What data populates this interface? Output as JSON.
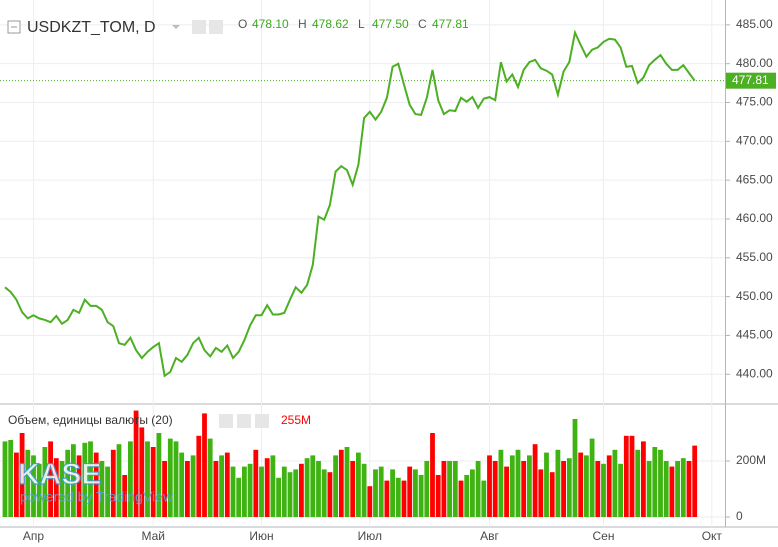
{
  "chart_data": [
    {
      "type": "line",
      "title": "USDKZT_TOM, D",
      "ohlc": [
        {
          "label": "O",
          "value": "478.10"
        },
        {
          "label": "H",
          "value": "478.62"
        },
        {
          "label": "L",
          "value": "477.50"
        },
        {
          "label": "C",
          "value": "477.81"
        }
      ],
      "color": "#4caf24",
      "last_price": 477.81,
      "values": [
        451.2,
        450.6,
        449.6,
        448.0,
        447.2,
        447.6,
        447.2,
        447.0,
        446.7,
        447.5,
        446.5,
        447.0,
        448.3,
        447.9,
        449.6,
        448.8,
        448.8,
        448.3,
        446.7,
        446.2,
        444.0,
        443.8,
        444.7,
        443.1,
        442.1,
        442.9,
        443.5,
        444.0,
        439.8,
        440.3,
        442.1,
        441.6,
        442.5,
        444.0,
        444.7,
        443.1,
        442.3,
        443.4,
        442.9,
        443.7,
        442.1,
        442.9,
        444.4,
        446.3,
        447.6,
        447.6,
        448.9,
        447.7,
        447.7,
        447.9,
        449.6,
        451.2,
        450.5,
        451.5,
        454.1,
        460.3,
        459.9,
        461.8,
        466.1,
        466.8,
        466.3,
        464.4,
        467.0,
        473.0,
        473.8,
        472.8,
        473.8,
        475.6,
        479.6,
        480.0,
        477.3,
        474.7,
        473.5,
        473.4,
        475.6,
        479.2,
        475.3,
        473.5,
        474.0,
        473.9,
        475.6,
        475.1,
        475.7,
        474.3,
        475.5,
        475.7,
        475.3,
        480.2,
        477.7,
        478.6,
        477.0,
        479.2,
        480.2,
        480.5,
        479.4,
        479.1,
        478.6,
        476.0,
        479.0,
        480.2,
        484.0,
        482.4,
        480.9,
        481.8,
        482.1,
        482.8,
        483.2,
        483.1,
        482.1,
        479.6,
        479.7,
        477.5,
        478.2,
        479.8,
        480.5,
        481.1,
        480.0,
        479.2,
        479.2,
        479.8,
        478.8,
        477.81,
        null,
        null,
        null
      ],
      "ylim": [
        436.3,
        488.2
      ],
      "yticks": [
        {
          "value": 440,
          "label": "440.00"
        },
        {
          "value": 445,
          "label": "445.00"
        },
        {
          "value": 450,
          "label": "450.00"
        },
        {
          "value": 455,
          "label": "455.00"
        },
        {
          "value": 460,
          "label": "460.00"
        },
        {
          "value": 465,
          "label": "465.00"
        },
        {
          "value": 470,
          "label": "470.00"
        },
        {
          "value": 475,
          "label": "475.00"
        },
        {
          "value": 480,
          "label": "480.00"
        },
        {
          "value": 485,
          "label": "485.00"
        }
      ],
      "grid": true
    },
    {
      "type": "bar",
      "title": "Объем, единицы валюты (20)",
      "legend_value": "255M",
      "watermark": {
        "logo": "KASE",
        "tagline": "powered by TradingView"
      },
      "categories": [
        null,
        null,
        null,
        null,
        null,
        "Апр",
        null,
        null,
        null,
        null,
        null,
        null,
        null,
        null,
        null,
        null,
        null,
        null,
        null,
        null,
        null,
        null,
        null,
        null,
        null,
        null,
        "Май",
        null,
        null,
        null,
        null,
        null,
        null,
        null,
        null,
        null,
        null,
        null,
        null,
        null,
        null,
        null,
        null,
        null,
        null,
        "Июн",
        null,
        null,
        null,
        null,
        null,
        null,
        null,
        null,
        null,
        null,
        null,
        null,
        null,
        null,
        null,
        null,
        null,
        null,
        "Июл",
        null,
        null,
        null,
        null,
        null,
        null,
        null,
        null,
        null,
        null,
        null,
        null,
        null,
        null,
        null,
        null,
        null,
        null,
        null,
        null,
        "Авг",
        null,
        null,
        null,
        null,
        null,
        null,
        null,
        null,
        null,
        null,
        null,
        null,
        null,
        null,
        null,
        null,
        null,
        null,
        null,
        "Сен",
        null,
        null,
        null,
        null,
        null,
        null,
        null,
        null,
        null,
        null,
        null,
        null,
        null,
        null,
        null,
        null,
        null,
        null,
        "Окт"
      ],
      "values": [
        270,
        275,
        230,
        300,
        240,
        220,
        190,
        250,
        270,
        210,
        200,
        240,
        260,
        220,
        265,
        270,
        230,
        200,
        180,
        240,
        260,
        150,
        270,
        380,
        320,
        270,
        250,
        300,
        200,
        280,
        270,
        230,
        200,
        220,
        290,
        370,
        280,
        200,
        220,
        230,
        180,
        140,
        180,
        190,
        240,
        180,
        210,
        220,
        140,
        180,
        160,
        170,
        190,
        210,
        220,
        200,
        170,
        160,
        220,
        240,
        250,
        200,
        230,
        190,
        110,
        170,
        180,
        130,
        170,
        140,
        130,
        180,
        170,
        150,
        200,
        300,
        150,
        200,
        200,
        200,
        130,
        150,
        170,
        200,
        130,
        220,
        200,
        240,
        180,
        220,
        240,
        200,
        220,
        260,
        170,
        230,
        160,
        240,
        200,
        210,
        350,
        230,
        220,
        280,
        200,
        190,
        220,
        240,
        190,
        290,
        290,
        240,
        270,
        200,
        250,
        240,
        200,
        180,
        200,
        210,
        200,
        255,
        null,
        null,
        null
      ],
      "colors": [
        "#3fb312",
        "#3fb312",
        "#ff0000",
        "#ff0000",
        "#3fb312",
        "#3fb312",
        "#3fb312",
        "#3fb312",
        "#ff0000",
        "#ff0000",
        "#3fb312",
        "#3fb312",
        "#3fb312",
        "#ff0000",
        "#3fb312",
        "#3fb312",
        "#ff0000",
        "#3fb312",
        "#3fb312",
        "#ff0000",
        "#3fb312",
        "#ff0000",
        "#3fb312",
        "#ff0000",
        "#ff0000",
        "#3fb312",
        "#ff0000",
        "#3fb312",
        "#ff0000",
        "#3fb312",
        "#3fb312",
        "#3fb312",
        "#ff0000",
        "#3fb312",
        "#ff0000",
        "#ff0000",
        "#3fb312",
        "#ff0000",
        "#3fb312",
        "#ff0000",
        "#3fb312",
        "#3fb312",
        "#3fb312",
        "#3fb312",
        "#ff0000",
        "#3fb312",
        "#ff0000",
        "#3fb312",
        "#3fb312",
        "#3fb312",
        "#3fb312",
        "#3fb312",
        "#ff0000",
        "#3fb312",
        "#3fb312",
        "#3fb312",
        "#3fb312",
        "#ff0000",
        "#3fb312",
        "#ff0000",
        "#3fb312",
        "#ff0000",
        "#3fb312",
        "#3fb312",
        "#ff0000",
        "#3fb312",
        "#3fb312",
        "#ff0000",
        "#3fb312",
        "#3fb312",
        "#ff0000",
        "#ff0000",
        "#3fb312",
        "#3fb312",
        "#3fb312",
        "#ff0000",
        "#ff0000",
        "#ff0000",
        "#3fb312",
        "#3fb312",
        "#ff0000",
        "#3fb312",
        "#3fb312",
        "#3fb312",
        "#3fb312",
        "#ff0000",
        "#ff0000",
        "#3fb312",
        "#ff0000",
        "#3fb312",
        "#3fb312",
        "#ff0000",
        "#3fb312",
        "#ff0000",
        "#ff0000",
        "#3fb312",
        "#ff0000",
        "#3fb312",
        "#ff0000",
        "#3fb312",
        "#3fb312",
        "#ff0000",
        "#3fb312",
        "#3fb312",
        "#ff0000",
        "#3fb312",
        "#ff0000",
        "#3fb312",
        "#3fb312",
        "#ff0000",
        "#ff0000",
        "#3fb312",
        "#ff0000",
        "#3fb312",
        "#3fb312",
        "#3fb312",
        "#3fb312",
        "#ff0000",
        "#3fb312",
        "#3fb312",
        "#ff0000",
        "#ff0000",
        null,
        null,
        null
      ],
      "ylim": [
        0,
        400
      ],
      "yticks": [
        0,
        {
          "value": 200,
          "label": "200M"
        }
      ],
      "grid": true
    }
  ]
}
